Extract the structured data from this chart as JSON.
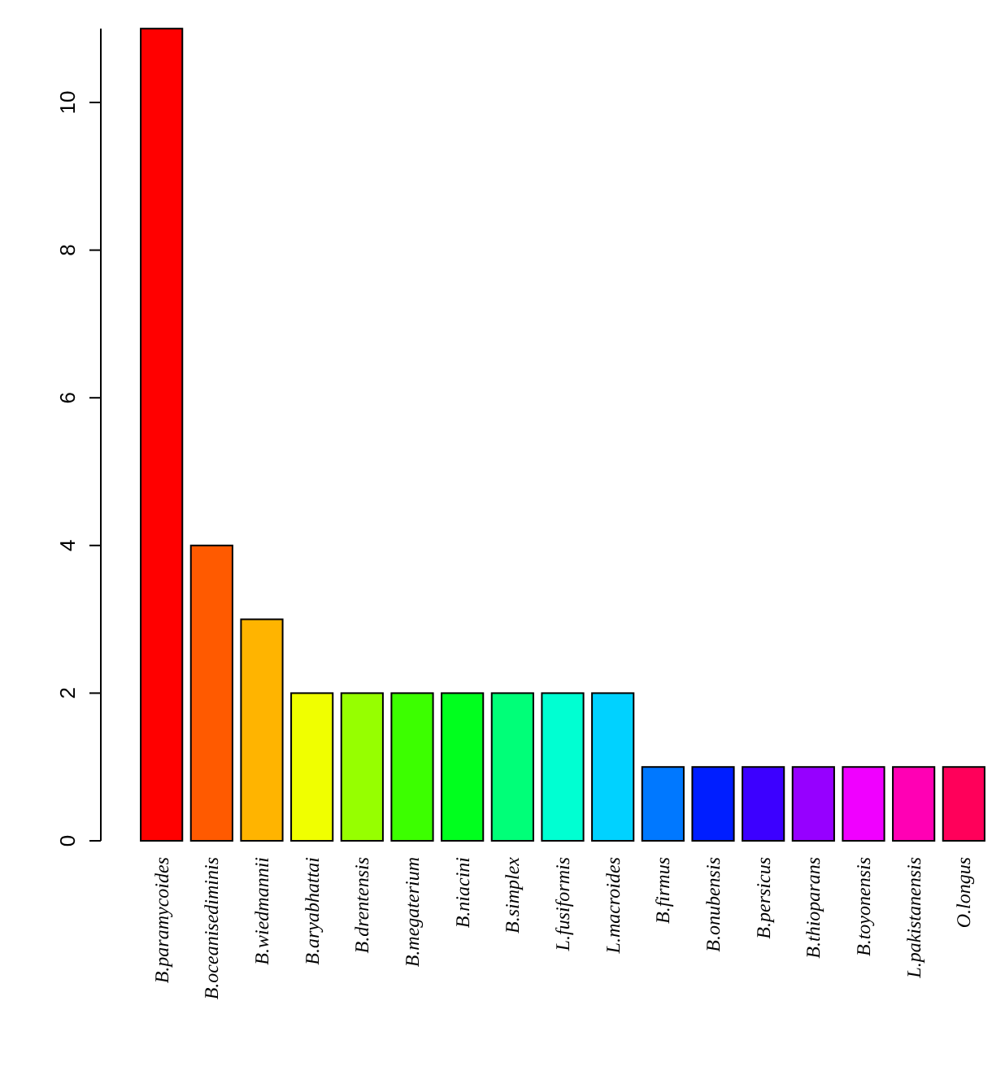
{
  "chart_data": {
    "type": "bar",
    "categories": [
      "B.paramycoides",
      "B.oceanisediminis",
      "B.wiedmannii",
      "B.aryabhattai",
      "B.drentensis",
      "B.megaterium",
      "B.niacini",
      "B.simplex",
      "L.fusiformis",
      "L.macroides",
      "B.firmus",
      "B.onubensis",
      "B.persicus",
      "B.thioparans",
      "B.toyonensis",
      "L.pakistanensis",
      "O.longus"
    ],
    "values": [
      11,
      4,
      3,
      2,
      2,
      2,
      2,
      2,
      2,
      2,
      1,
      1,
      1,
      1,
      1,
      1,
      1
    ],
    "colors": [
      "#ff0000",
      "#ff5a00",
      "#ffb400",
      "#f0ff00",
      "#96ff00",
      "#3cff00",
      "#00ff1e",
      "#00ff78",
      "#00ffd2",
      "#00d2ff",
      "#0078ff",
      "#001eff",
      "#3c00ff",
      "#9600ff",
      "#f000ff",
      "#ff00b4",
      "#ff005a"
    ],
    "ylim": [
      0,
      11
    ],
    "yticks": [
      0,
      2,
      4,
      6,
      8,
      10
    ],
    "grid": false
  }
}
